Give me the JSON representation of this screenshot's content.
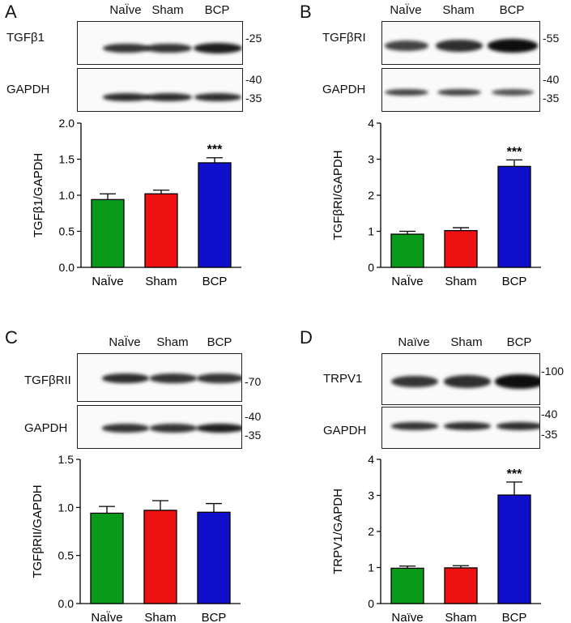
{
  "panels": [
    {
      "letter": "A",
      "lanes": [
        "NaÏve",
        "Sham",
        "BCP"
      ],
      "blots": [
        {
          "name": "TGFβ1",
          "markers": [
            "25"
          ],
          "band_intensity": [
            0.7,
            0.7,
            0.85
          ]
        },
        {
          "name": "GAPDH",
          "markers": [
            "40",
            "35"
          ],
          "band_intensity": [
            0.75,
            0.75,
            0.75
          ]
        }
      ]
    },
    {
      "letter": "B",
      "lanes": [
        "NaÏve",
        "Sham",
        "BCP"
      ],
      "blots": [
        {
          "name": "TGFβRI",
          "markers": [
            "55"
          ],
          "band_intensity": [
            0.6,
            0.75,
            0.95
          ]
        },
        {
          "name": "GAPDH",
          "markers": [
            "40",
            "35"
          ],
          "band_intensity": [
            0.6,
            0.6,
            0.5
          ]
        }
      ]
    },
    {
      "letter": "C",
      "lanes": [
        "NaÏve",
        "Sham",
        "BCP"
      ],
      "blots": [
        {
          "name": "TGFβRII",
          "markers": [
            "70"
          ],
          "band_intensity": [
            0.75,
            0.7,
            0.7
          ]
        },
        {
          "name": "GAPDH",
          "markers": [
            "40",
            "35"
          ],
          "band_intensity": [
            0.7,
            0.7,
            0.85
          ]
        }
      ]
    },
    {
      "letter": "D",
      "lanes": [
        "Naïve",
        "Sham",
        "BCP"
      ],
      "blots": [
        {
          "name": "TRPV1",
          "markers": [
            "100"
          ],
          "band_intensity": [
            0.7,
            0.75,
            0.95
          ]
        },
        {
          "name": "GAPDH",
          "markers": [
            "40",
            "35"
          ],
          "band_intensity": [
            0.7,
            0.75,
            0.75
          ]
        }
      ]
    }
  ],
  "colors": {
    "naive": "#0a9a1a",
    "sham": "#ee1111",
    "bcp": "#1010cc"
  },
  "chart_data": [
    {
      "type": "bar",
      "categories": [
        "NaÏve",
        "Sham",
        "BCP"
      ],
      "values": [
        0.94,
        1.02,
        1.45
      ],
      "errors": [
        0.08,
        0.05,
        0.07
      ],
      "significance": [
        "",
        "",
        "***"
      ],
      "ylabel": "TGFβ1/GAPDH",
      "ylim": [
        0,
        2.0
      ],
      "yticks": [
        "0.0",
        "0.5",
        "1.0",
        "1.5",
        "2.0"
      ]
    },
    {
      "type": "bar",
      "categories": [
        "NaÏve",
        "Sham",
        "BCP"
      ],
      "values": [
        0.92,
        1.02,
        2.8
      ],
      "errors": [
        0.08,
        0.08,
        0.18
      ],
      "significance": [
        "",
        "",
        "***"
      ],
      "ylabel": "TGFβRI/GAPDH",
      "ylim": [
        0,
        4
      ],
      "yticks": [
        "0",
        "1",
        "2",
        "3",
        "4"
      ]
    },
    {
      "type": "bar",
      "categories": [
        "NaÏve",
        "Sham",
        "BCP"
      ],
      "values": [
        0.94,
        0.97,
        0.95
      ],
      "errors": [
        0.07,
        0.1,
        0.09
      ],
      "significance": [
        "",
        "",
        ""
      ],
      "ylabel": "TGFβRII/GAPDH",
      "ylim": [
        0,
        1.5
      ],
      "yticks": [
        "0.0",
        "0.5",
        "1.0",
        "1.5"
      ]
    },
    {
      "type": "bar",
      "categories": [
        "Naïve",
        "Sham",
        "BCP"
      ],
      "values": [
        0.98,
        0.99,
        3.01
      ],
      "errors": [
        0.06,
        0.06,
        0.36
      ],
      "significance": [
        "",
        "",
        "***"
      ],
      "ylabel": "TRPV1/GAPDH",
      "ylim": [
        0,
        4
      ],
      "yticks": [
        "0",
        "1",
        "2",
        "3",
        "4"
      ]
    }
  ]
}
